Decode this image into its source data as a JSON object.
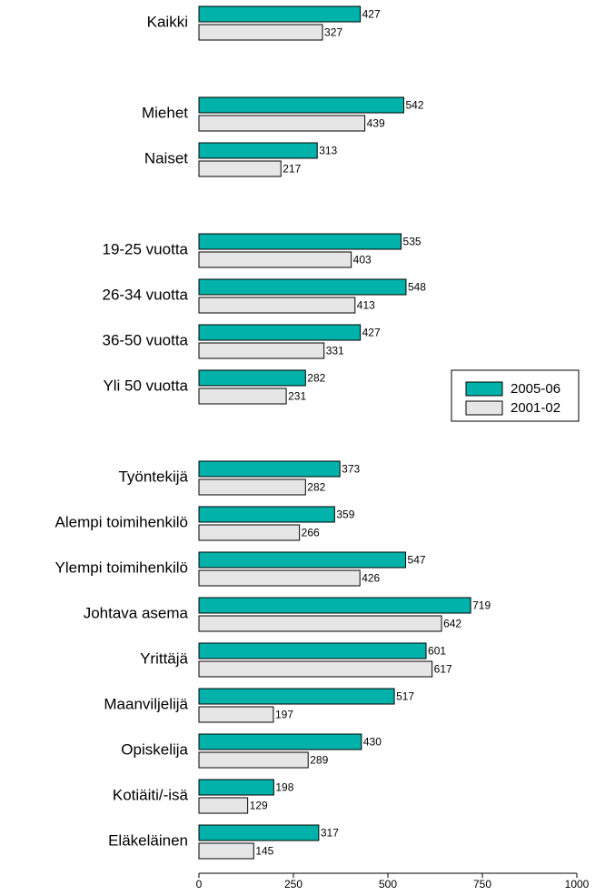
{
  "chart_data": {
    "type": "hbar",
    "categories": [
      "Kaikki",
      null,
      "Miehet",
      "Naiset",
      null,
      "19-25 vuotta",
      "26-34 vuotta",
      "36-50 vuotta",
      "Yli 50 vuotta",
      null,
      "Työntekijä",
      "Alempi toimihenkilö",
      "Ylempi toimihenkilö",
      "Johtava asema",
      "Yrittäjä",
      "Maanviljelijä",
      "Opiskelija",
      "Kotiäiti/-isä",
      "Eläkeläinen"
    ],
    "series": [
      {
        "name": "2005-06",
        "color": "#00b2a9",
        "values": [
          427,
          null,
          542,
          313,
          null,
          535,
          548,
          427,
          282,
          null,
          373,
          359,
          547,
          719,
          601,
          517,
          430,
          198,
          317
        ]
      },
      {
        "name": "2001-02",
        "color": "#e6e6e6",
        "values": [
          327,
          null,
          439,
          217,
          null,
          403,
          413,
          331,
          231,
          null,
          282,
          266,
          426,
          642,
          617,
          197,
          289,
          129,
          145
        ]
      }
    ],
    "xlim": [
      0,
      1000
    ],
    "xticks": [
      0,
      250,
      500,
      750,
      1000
    ],
    "legend": "right"
  }
}
